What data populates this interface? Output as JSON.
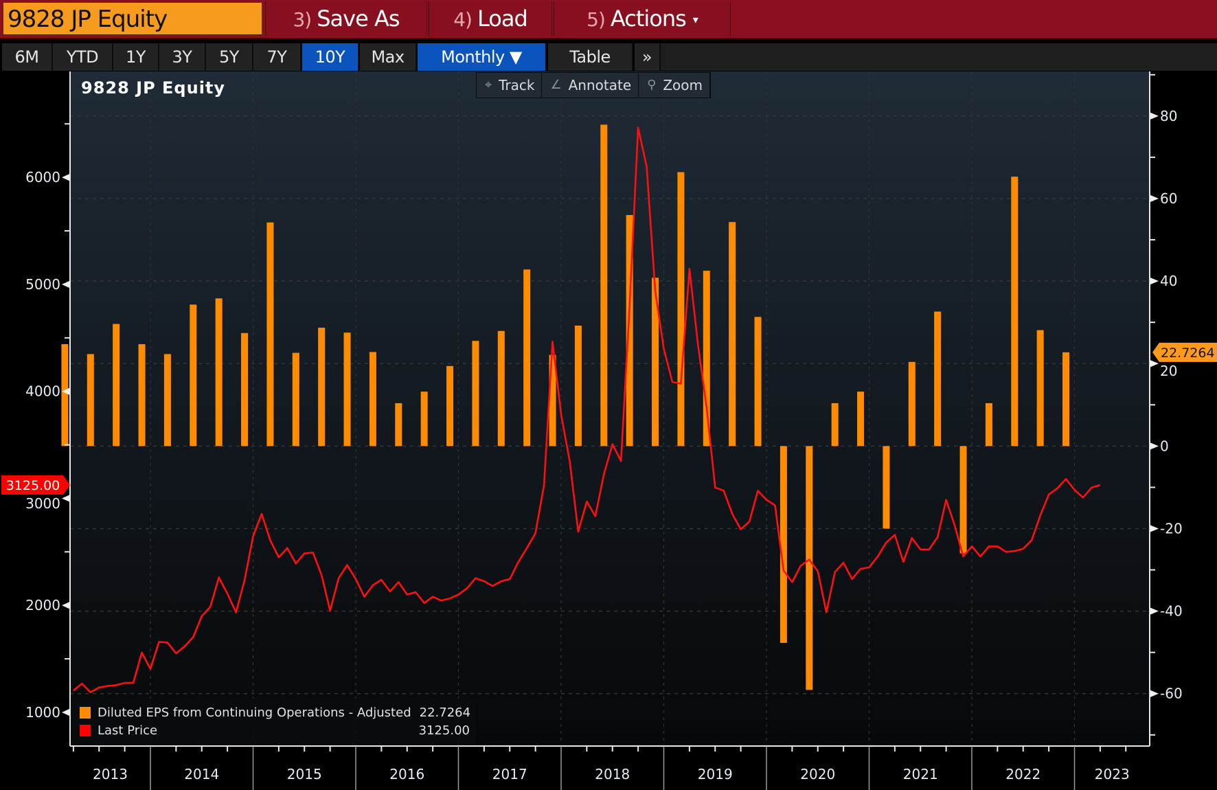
{
  "toolbar": {
    "ticker": "9828 JP Equity",
    "buttons": [
      {
        "num": "3)",
        "label": "Save As"
      },
      {
        "num": "4)",
        "label": "Load"
      },
      {
        "num": "5)",
        "label": "Actions",
        "caret": "▾"
      }
    ]
  },
  "range_bar": {
    "ranges": [
      "6M",
      "YTD",
      "1Y",
      "3Y",
      "5Y",
      "7Y",
      "10Y",
      "Max"
    ],
    "active_range": "10Y",
    "frequency": "Monthly ▼",
    "table": "Table",
    "more": "»"
  },
  "chart_tools": [
    {
      "icon": "crosshair-icon",
      "glyph": "⌖",
      "label": "Track"
    },
    {
      "icon": "pencil-icon",
      "glyph": "∠",
      "label": "Annotate"
    },
    {
      "icon": "magnifier-icon",
      "glyph": "⚲",
      "label": "Zoom"
    }
  ],
  "colors": {
    "eps": "#ff8c00",
    "price": "#ff1010",
    "accent_active": "#0b54be",
    "ticker_bg": "#f79b1e",
    "toolbar_bg": "#8a0f1f"
  },
  "chart_data": {
    "type": "bar+line",
    "title": "9828 JP Equity",
    "x_tick_labels": [
      "2013",
      "2014",
      "2015",
      "2016",
      "2017",
      "2018",
      "2019",
      "2020",
      "2021",
      "2022",
      "2023"
    ],
    "x_range": [
      "2013-03",
      "2023-09"
    ],
    "left_axis": {
      "label": "Last Price",
      "ticks": [
        1000,
        2000,
        3000,
        4000,
        5000,
        6000
      ],
      "range": [
        685,
        6990
      ]
    },
    "right_axis": {
      "label": "Diluted EPS",
      "ticks": [
        -60,
        -40,
        -20,
        0,
        20,
        40,
        60,
        80
      ],
      "range": [
        -72.7,
        90.8
      ]
    },
    "grid": true,
    "legend_position": "bottom-left",
    "last_price_label": "3125.00",
    "last_eps_label": "22.7264",
    "series": [
      {
        "name": "Diluted EPS from Continuing Operations - Adjusted",
        "legend_value": "22.7264",
        "axis": "right",
        "kind": "bar",
        "frequency": "quarterly",
        "start": "2013-03",
        "values": [
          24.7,
          22.3,
          29.6,
          24.7,
          22.3,
          34.3,
          35.8,
          27.4,
          54.2,
          22.6,
          28.7,
          27.5,
          22.8,
          10.4,
          13.2,
          19.4,
          25.5,
          27.9,
          42.8,
          22.1,
          29.2,
          77.9,
          56.0,
          40.8,
          66.4,
          42.5,
          54.3,
          31.3,
          -47.7,
          -59.1,
          10.4,
          13.2,
          -20.0,
          20.4,
          32.6,
          -26.0,
          10.4,
          65.3,
          28.1,
          22.7264
        ]
      },
      {
        "name": "Last Price",
        "legend_value": "3125.00",
        "axis": "left",
        "kind": "line",
        "frequency": "monthly",
        "start": "2013-04",
        "values": [
          1203,
          1268,
          1188,
          1232,
          1246,
          1254,
          1275,
          1275,
          1558,
          1406,
          1659,
          1652,
          1551,
          1616,
          1703,
          1899,
          1986,
          2261,
          2109,
          1935,
          2232,
          2645,
          2855,
          2609,
          2449,
          2536,
          2391,
          2486,
          2493,
          2283,
          1949,
          2254,
          2377,
          2246,
          2080,
          2188,
          2239,
          2130,
          2217,
          2101,
          2123,
          2022,
          2080,
          2044,
          2065,
          2101,
          2159,
          2254,
          2225,
          2181,
          2225,
          2246,
          2406,
          2536,
          2674,
          3123,
          4464,
          3783,
          3348,
          2688,
          2971,
          2833,
          3225,
          3507,
          3348,
          4797,
          6464,
          6101,
          4942,
          4398,
          4087,
          4072,
          5145,
          4435,
          3855,
          3101,
          3072,
          2855,
          2710,
          2783,
          3072,
          2986,
          2935,
          2326,
          2217,
          2370,
          2428,
          2319,
          1935,
          2312,
          2399,
          2246,
          2341,
          2355,
          2457,
          2587,
          2659,
          2406,
          2630,
          2522,
          2522,
          2638,
          2986,
          2746,
          2457,
          2551,
          2457,
          2551,
          2551,
          2500,
          2507,
          2529,
          2609,
          2841,
          3036,
          3094,
          3181,
          3080,
          3007,
          3101,
          3125
        ]
      }
    ]
  }
}
